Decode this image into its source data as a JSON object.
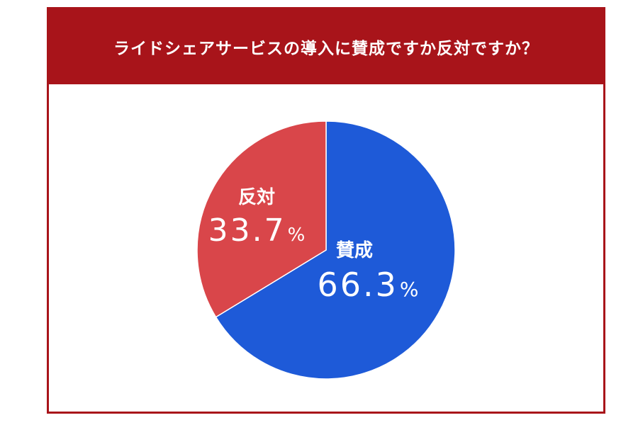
{
  "header": {
    "title": "ライドシェアサービスの導入に賛成ですか反対ですか？"
  },
  "chart_data": {
    "type": "pie",
    "title": "ライドシェアサービスの導入に賛成ですか反対ですか？",
    "slices": [
      {
        "label": "賛成",
        "value": 66.3,
        "value_text": "66.3",
        "unit": "%",
        "color": "#1e5ad8"
      },
      {
        "label": "反対",
        "value": 33.7,
        "value_text": "33.7",
        "unit": "%",
        "color": "#d9464a"
      }
    ],
    "start_angle_deg": 0,
    "direction": "clockwise"
  }
}
